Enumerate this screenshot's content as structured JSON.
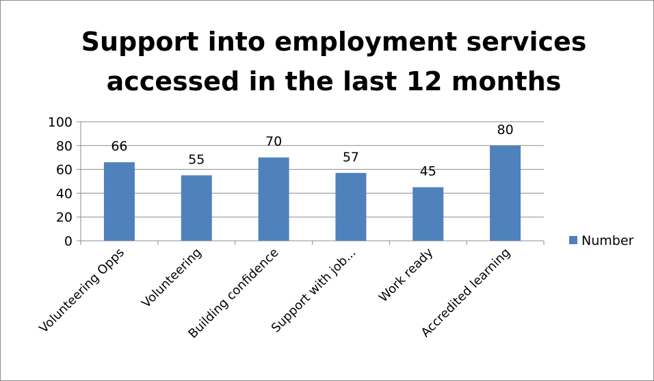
{
  "chart_data": {
    "type": "bar",
    "title": "Support into employment services accessed in the last 12 months",
    "title_lines": [
      "Support into employment services",
      "accessed in the last 12 months"
    ],
    "categories": [
      "Volunteering Opps",
      "Volunteering",
      "Building confidence",
      "Support with job...",
      "Work ready",
      "Accredited learning"
    ],
    "series": [
      {
        "name": "Number",
        "values": [
          66,
          55,
          70,
          57,
          45,
          80
        ],
        "color": "#4f81bd"
      }
    ],
    "ylim": [
      0,
      100
    ],
    "yticks": [
      0,
      20,
      40,
      60,
      80,
      100
    ],
    "grid": true,
    "legend_position": "right",
    "xlabel": "",
    "ylabel": ""
  }
}
